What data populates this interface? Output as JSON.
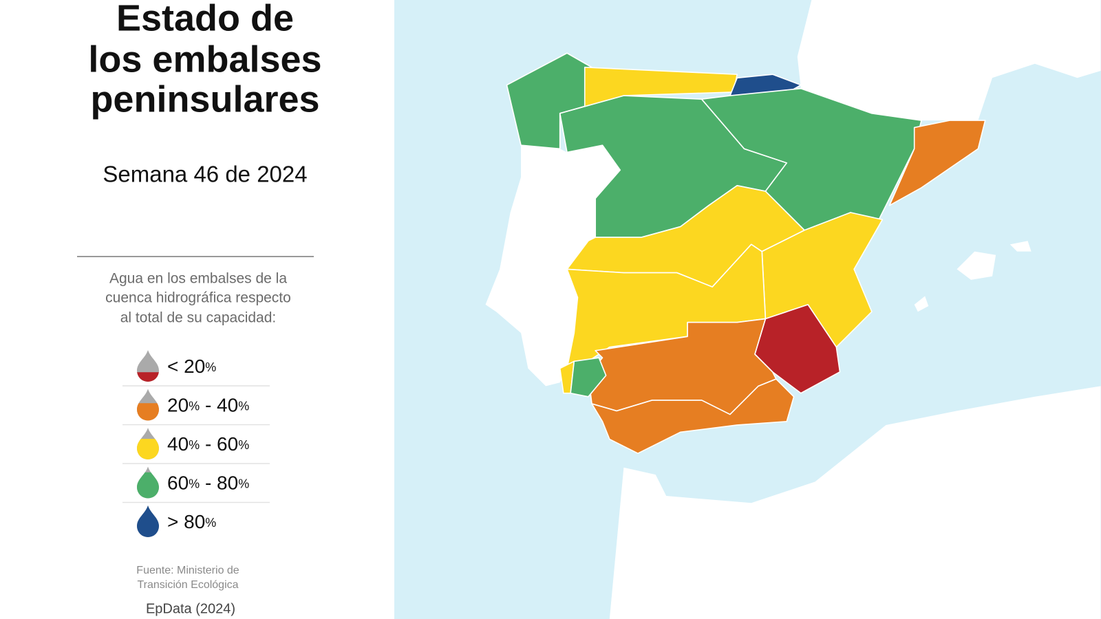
{
  "header": {
    "title": [
      "Estado de",
      "los embalses",
      "peninsulares"
    ],
    "subtitle": "Semana 46 de 2024"
  },
  "legend": {
    "description": [
      "Agua en los embalses de la",
      "cuenca hidrográfica respecto",
      "al total de su capacidad:"
    ],
    "items": [
      {
        "label": "< 20%",
        "color": "#b82228"
      },
      {
        "label": "20% - 40%",
        "color": "#e67e22"
      },
      {
        "label": "40% - 60%",
        "color": "#fcd720"
      },
      {
        "label": "60% - 80%",
        "color": "#4caf6a"
      },
      {
        "label": "> 80%",
        "color": "#1f4e8c"
      }
    ]
  },
  "footer": {
    "source": [
      "Fuente: Ministerio de",
      "Transición Ecológica"
    ],
    "credit": "EpData (2024)"
  }
}
